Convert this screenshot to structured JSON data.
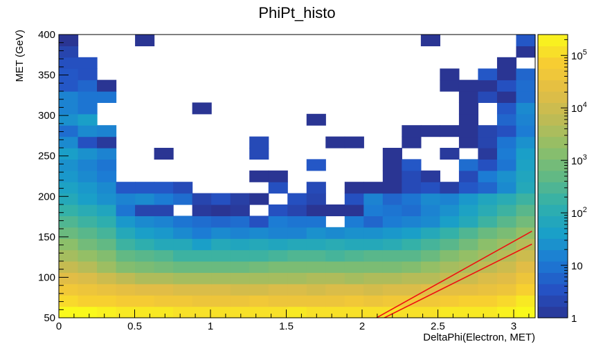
{
  "chart_data": {
    "type": "heatmap",
    "title": "PhiPt_histo",
    "xlabel": "DeltaPhi(Electron, MET)",
    "ylabel": "MET (GeV)",
    "xlim": [
      0,
      3.1416
    ],
    "ylim": [
      50,
      400
    ],
    "x_ticks": [
      {
        "value": 0,
        "label": "0"
      },
      {
        "value": 0.5,
        "label": "0.5"
      },
      {
        "value": 1,
        "label": "1"
      },
      {
        "value": 1.5,
        "label": "1.5"
      },
      {
        "value": 2,
        "label": "2"
      },
      {
        "value": 2.5,
        "label": "2.5"
      },
      {
        "value": 3,
        "label": "3"
      }
    ],
    "y_ticks": [
      {
        "value": 50,
        "label": "50"
      },
      {
        "value": 100,
        "label": "100"
      },
      {
        "value": 150,
        "label": "150"
      },
      {
        "value": 200,
        "label": "200"
      },
      {
        "value": 250,
        "label": "250"
      },
      {
        "value": 300,
        "label": "300"
      },
      {
        "value": 350,
        "label": "350"
      },
      {
        "value": 400,
        "label": "400"
      }
    ],
    "x_bins": 25,
    "y_bins": 25,
    "z_scale": "log",
    "zlim": [
      1,
      250000
    ],
    "colorbar_ticks": [
      {
        "value": 1,
        "base": "1",
        "exp": ""
      },
      {
        "value": 10,
        "base": "10",
        "exp": ""
      },
      {
        "value": 100,
        "base": "10",
        "exp": "2"
      },
      {
        "value": 1000,
        "base": "10",
        "exp": "3"
      },
      {
        "value": 10000,
        "base": "10",
        "exp": "4"
      },
      {
        "value": 100000,
        "base": "10",
        "exp": "5"
      }
    ],
    "palette": [
      "#2a3593",
      "#2552c4",
      "#1c7bd4",
      "#1aa0c8",
      "#30b0ab",
      "#62b984",
      "#8fbf68",
      "#bdbb55",
      "#e2bd45",
      "#f7cd32",
      "#f9f91b"
    ],
    "overlay_lines": [
      {
        "color": "#ee1111",
        "points": [
          [
            2.0,
            40
          ],
          [
            3.12,
            157
          ]
        ]
      },
      {
        "color": "#ee1111",
        "points": [
          [
            2.04,
            40
          ],
          [
            3.12,
            141
          ]
        ]
      }
    ],
    "z_rows_log10": [
      "5.4 5.4 5.3 5.2 5.2 5.2 5.1 5.1 5.1 5.1 5.1 5.1 5.2 5.1 5.1 5.1 5.1 5.1 5.1 5.1 5.2 5.2 5.2 5.3 5.4",
      "5.0 4.9 4.9 4.8 4.8 4.7 4.7 4.6 4.6 4.6 4.7 4.6 4.6 4.6 4.6 4.7 4.6 4.7 4.7 4.7 4.8 4.9 4.9 5.0 5.2",
      "4.7 4.6 4.5 4.4 4.3 4.3 4.2 4.2 4.2 4.1 4.1 4.2 4.2 4.1 4.2 4.2 4.1 4.2 4.2 4.3 4.4 4.4 4.5 4.6 4.9",
      "4.3 4.2 4.0 3.8 3.6 3.6 3.5 3.5 3.5 3.5 3.5 3.5 3.5 3.6 3.6 3.5 3.6 3.6 3.7 3.7 3.9 4.0 4.2 4.3 4.6",
      "3.9 3.7 3.4 3.1 3.0 2.9 2.8 2.8 2.8 2.8 2.9 3.0 3.0 3.0 3.0 3.0 3.0 3.0 3.1 3.3 3.5 3.6 3.8 4.0 4.3",
      "3.5 3.3 3.1 2.7 2.6 2.5 2.3 2.3 2.3 2.3 2.3 2.4 2.5 2.5 2.4 2.5 2.6 2.6 2.6 2.8 3.1 3.3 3.5 3.7 4.0",
      "3.2 2.9 2.7 2.3 2.1 1.9 1.9 1.6 1.9 1.8 1.9 1.8 1.9 1.9 2.0 1.9 1.9 2.0 2.2 2.4 2.6 2.9 3.2 3.4 3.7",
      "2.8 2.6 2.4 1.9 1.6 1.5 1.3 1.1 1.3 1.2 1.3 1.2 1.2 1.4 1.3 1.4 1.4 1.5 1.6 1.9 2.2 2.5 2.8 3.0 3.3",
      "2.5 2.3 2.1 1.5 1.3 1.2 1.0 0.9 0.8 0.9 0.5 1.1 1.0 1.0 N 1.1 0.8 1.1 1.2 1.3 1.6 1.9 2.3 2.6 2.9",
      "2.2 2.0 1.8 1.0 0.3 0.3 N 0.1 0.0 0.1 N 0.5 0.3 0.0 0.0 0.0 1.1 1.0 0.9 1.2 1.4 1.7 2.0 2.3 2.6",
      "1.9 1.6 1.4 1.2 1.3 1.1 0.9 0.3 0.5 0.2 0.0 N 0.5 0.3 N 0.5 1.2 0.8 1.0 1.3 1.2 1.5 1.8 2.0 2.3",
      "1.7 1.5 1.3 0.6 0.6 0.6 0.4 N N N N 0.5 N 0.4 N 0.0 0.0 0.0 0.4 0.5 0.2 0.6 0.8 1.3 1.9",
      "1.5 1.3 1.1 N N N N N N N 0.0 0.0 N N N N N 0.0 0.4 0.1 N 0.4 1.1 1.4 1.8",
      "1.4 1.2 1.0 N N N N N N N N N N 0.6 N N N 0.0 0.6 N N 0.9 0.5 1.0 1.7",
      "1.6 1.4 1.2 N N 0.0 N N N N 0.4 N N N N N N 0.0 N N 0.1 N 0.1 1.1 1.6",
      "1.3 0.5 0.1 N N N N N N N 0.4 N N N 0.0 0.0 N N 0.0 N N 0.0 0.3 1.0 1.4",
      "0.9 1.3 1.2 N N N N N N N N N N N N N N N 0.0 0.0 0.0 0.0 0.3 0.5 1.1",
      "1.4 1.6 N N N N N N N N N N N 0.0 N N N N N N N 0.0 N 0.8 1.2",
      "1.2 1.0 N N N N N 0.0 N N N N N N N N N N N N N 0.0 N 0.6 1.3",
      "1.2 1.0 1.0 N N N N N N N N N N N N N N N N N N 0.0 0.4 0.0 0.9",
      "0.6 0.8 0.0 N N N N N N N N N N N N N N N N N 0.0 0.0 0.0 0.5 0.9",
      "0.6 0.5 N N N N N N N N N N N N N N N N N N 0.0 N 0.6 0.0 0.8",
      "0.5 0.5 N N N N N N N N N N N N N N N N N N N N N 0.0 N",
      "0.3 N N N N N N N N N N N N N N N N N N N N N N N 0.0",
      "0.0 N N N 0.0 N N N N N N N N N N N N N N 0.0 N N N N 0.6"
    ]
  }
}
